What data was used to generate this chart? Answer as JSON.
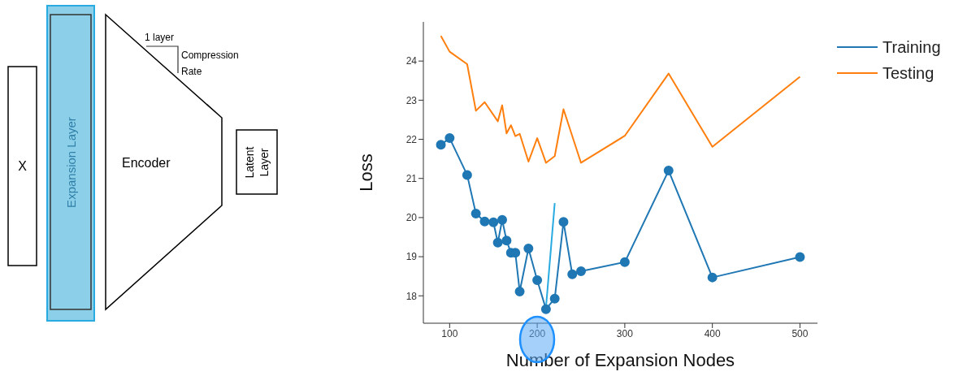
{
  "chart_data": [
    {
      "type": "other",
      "annotations": [
        "X",
        "Expansion Layer",
        "Encoder",
        "1 layer",
        "Compression Rate",
        "Latent Layer"
      ]
    },
    {
      "type": "line",
      "xlabel": "Number of Expansion Nodes",
      "ylabel": "Loss",
      "xlim": [
        70,
        520
      ],
      "xticks": [
        100,
        200,
        300,
        400,
        500
      ],
      "ylim": [
        17.3,
        25.0
      ],
      "yticks": [
        18,
        19,
        20,
        21,
        22,
        23,
        24
      ],
      "grid": false,
      "legend": "top right",
      "line_style": "solid",
      "series": [
        {
          "name": "Training",
          "color": "#1f77b4",
          "marker": "circle",
          "x": [
            90,
            100,
            120,
            130,
            140,
            150,
            155,
            160,
            165,
            170,
            175,
            180,
            190,
            200,
            210,
            220,
            230,
            240,
            250,
            300,
            350,
            400,
            500
          ],
          "values": [
            21.86,
            22.03,
            21.09,
            20.1,
            19.9,
            19.88,
            19.36,
            19.94,
            19.41,
            19.1,
            19.1,
            18.11,
            19.21,
            18.4,
            17.66,
            17.93,
            19.89,
            18.55,
            18.63,
            18.86,
            21.2,
            18.47,
            18.99
          ]
        },
        {
          "name": "Testing",
          "color": "#ff7f0e",
          "marker": "none",
          "x": [
            90,
            100,
            120,
            130,
            140,
            155,
            160,
            165,
            170,
            175,
            180,
            190,
            200,
            210,
            220,
            230,
            250,
            300,
            350,
            400,
            500
          ],
          "values": [
            24.64,
            24.24,
            23.92,
            22.73,
            22.95,
            22.46,
            22.87,
            22.15,
            22.36,
            22.08,
            22.14,
            21.43,
            22.03,
            21.4,
            21.57,
            22.77,
            21.4,
            22.09,
            23.68,
            21.81,
            23.6
          ]
        },
        {
          "color": "#29abe2",
          "marker": "none",
          "x": [
            210,
            220
          ],
          "values": [
            17.7,
            20.37
          ]
        }
      ]
    }
  ]
}
